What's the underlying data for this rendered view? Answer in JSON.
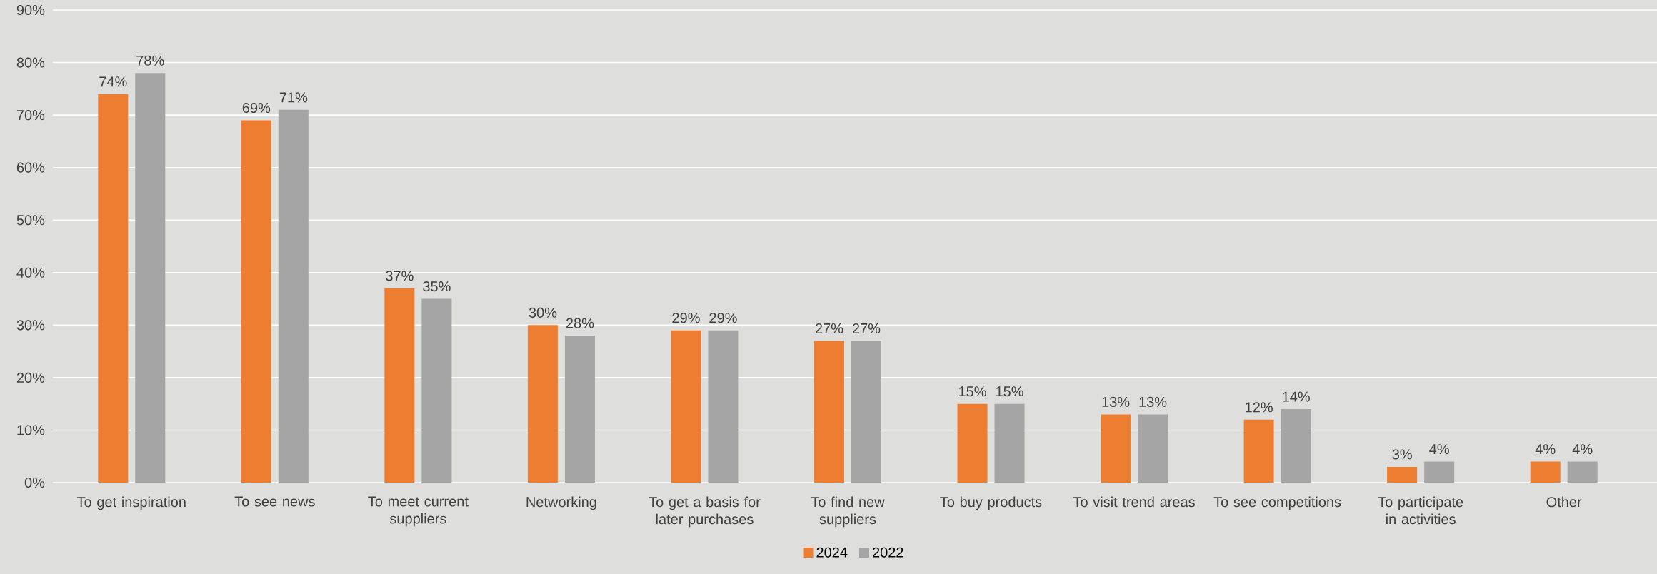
{
  "chart_data": {
    "type": "bar",
    "categories": [
      "To get inspiration",
      "To see news",
      "To meet current suppliers",
      "Networking",
      "To get a basis for later purchases",
      "To find new suppliers",
      "To buy products",
      "To visit trend areas",
      "To see competitions",
      "To participate in activities",
      "Other"
    ],
    "series": [
      {
        "name": "2024",
        "color": "#ed7d31",
        "values": [
          74,
          69,
          37,
          30,
          29,
          27,
          15,
          13,
          12,
          3,
          4
        ],
        "value_labels": [
          "74%",
          "69%",
          "37%",
          "30%",
          "29%",
          "27%",
          "15%",
          "13%",
          "12%",
          "3%",
          "4%"
        ]
      },
      {
        "name": "2022",
        "color": "#a5a5a5",
        "values": [
          78,
          71,
          35,
          28,
          29,
          27,
          15,
          13,
          14,
          4,
          4
        ],
        "value_labels": [
          "78%",
          "71%",
          "35%",
          "28%",
          "29%",
          "27%",
          "15%",
          "13%",
          "14%",
          "4%",
          "4%"
        ]
      }
    ],
    "ylim": [
      0,
      90
    ],
    "yticks": [
      {
        "value": 0,
        "label": "0%"
      },
      {
        "value": 10,
        "label": "10%"
      },
      {
        "value": 20,
        "label": "20%"
      },
      {
        "value": 30,
        "label": "30%"
      },
      {
        "value": 40,
        "label": "40%"
      },
      {
        "value": 50,
        "label": "50%"
      },
      {
        "value": 60,
        "label": "60%"
      },
      {
        "value": 70,
        "label": "70%"
      },
      {
        "value": 80,
        "label": "80%"
      },
      {
        "value": 90,
        "label": "90%"
      }
    ],
    "grid": "y",
    "legend": "bottom"
  }
}
